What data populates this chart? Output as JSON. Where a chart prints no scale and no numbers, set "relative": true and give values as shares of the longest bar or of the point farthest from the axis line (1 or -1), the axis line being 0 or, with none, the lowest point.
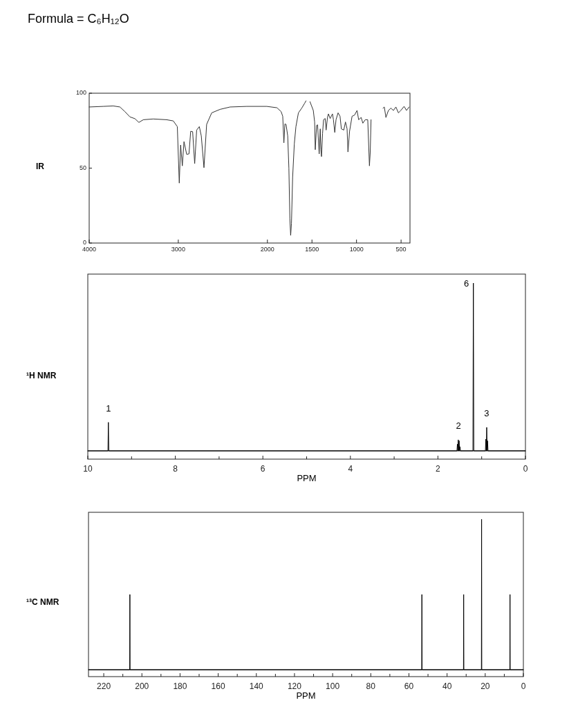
{
  "chart_data": [
    {
      "type": "line",
      "title": "IR",
      "annotations": [
        "Formula = C₆H₁₂O"
      ],
      "color": "#333333",
      "xlim": [
        4000,
        400
      ],
      "xticks": [
        4000,
        3000,
        2000,
        1500,
        1000,
        500
      ],
      "ylim": [
        0,
        100
      ],
      "yticks": [
        0,
        50,
        100
      ],
      "x": [
        4000,
        3843,
        3730,
        3655,
        3599,
        3543,
        3487,
        3442,
        3393,
        3281,
        3131,
        3056,
        3011,
        2989,
        2974,
        2955,
        2936,
        2906,
        2880,
        2861,
        2839,
        2816,
        2794,
        2764,
        2742,
        2712,
        2682,
        2625,
        2532,
        2419,
        2232,
        2007,
        1893,
        1846,
        1828,
        1815,
        1804,
        1791,
        1772,
        1759,
        1748,
        1739,
        1730,
        1717,
        1698,
        1680,
        1652,
        1615,
        1581,
        1567,
        1545,
        1522,
        1485,
        1470,
        1463,
        1448,
        1437,
        1419,
        1407,
        1400,
        1393,
        1381,
        1370,
        1352,
        1341,
        1326,
        1315,
        1296,
        1270,
        1259,
        1244,
        1230,
        1207,
        1185,
        1170,
        1143,
        1124,
        1106,
        1096,
        1078,
        1050,
        1022,
        994,
        976,
        948,
        929,
        902,
        874,
        855,
        846,
        837,
        770,
        703,
        688,
        670,
        642,
        614,
        586,
        558,
        530,
        503,
        466,
        439,
        410
      ],
      "values": [
        90.8,
        91.2,
        91.5,
        90.8,
        87.7,
        84.2,
        83,
        80.5,
        82.3,
        82.8,
        82.3,
        81.5,
        77.7,
        40,
        65.4,
        51.5,
        67.7,
        59.2,
        59.5,
        74.6,
        74.3,
        53,
        75.4,
        77.7,
        71.5,
        50.3,
        79.2,
        86.9,
        89.2,
        90.8,
        91.2,
        91.2,
        90.3,
        87.7,
        84.6,
        66.9,
        79.5,
        79.2,
        71.5,
        50,
        16.2,
        5.1,
        13.1,
        43.8,
        66.2,
        77.7,
        86.9,
        90,
        93.4,
        94.9,
        null,
        94.3,
        88.5,
        80.8,
        62.3,
        78.5,
        78.9,
        59.5,
        76.2,
        62.3,
        57.7,
        73.1,
        82.3,
        83.1,
        75.4,
        83.8,
        86.2,
        83.1,
        86.2,
        82.3,
        73.8,
        82.3,
        86.9,
        84.6,
        76.2,
        75.4,
        80.8,
        76.2,
        60.8,
        74.6,
        84.6,
        85.4,
        88.5,
        82.3,
        83.8,
        80,
        82.3,
        82.3,
        51.5,
        60.8,
        82.3,
        null,
        90,
        90.8,
        83.8,
        88.5,
        90,
        88.5,
        90.8,
        86.9,
        88.5,
        91.2,
        88.5,
        90.8
      ]
    },
    {
      "type": "line",
      "title": "¹H NMR",
      "xlabel": "PPM",
      "relative": true,
      "color": "#000000",
      "xlim": [
        10,
        0
      ],
      "xticks": [
        10,
        {
          "value": 9,
          "label": null
        },
        8,
        {
          "value": 7,
          "label": null
        },
        6,
        {
          "value": 5,
          "label": null
        },
        4,
        {
          "value": 3,
          "label": null
        },
        2,
        {
          "value": 1,
          "label": null
        },
        0
      ],
      "x": [
        10,
        9.54,
        9.53,
        9.52,
        1.565,
        1.555,
        1.545,
        1.535,
        1.525,
        1.515,
        1.505,
        1.495,
        1.485,
        1.2,
        1.19,
        1.18,
        0.915,
        0.905,
        0.895,
        0.885,
        0.875,
        0.865,
        0.855,
        0
      ],
      "values": [
        0,
        0,
        0.17,
        0,
        0,
        0.04,
        0,
        0.066,
        0,
        0.06,
        0,
        0.025,
        0,
        0,
        1,
        0,
        0,
        0.07,
        0,
        0.14,
        0,
        0.06,
        0,
        0
      ],
      "annotations": [
        {
          "text": "1",
          "x": 9.53,
          "y": 0.17
        },
        {
          "text": "2",
          "x": 1.53,
          "y": 0.066
        },
        {
          "text": "6",
          "x": 1.19,
          "y": 1
        },
        {
          "text": "3",
          "x": 0.885,
          "y": 0.14
        }
      ]
    },
    {
      "type": "line",
      "title": "¹³C NMR",
      "xlabel": "PPM",
      "relative": true,
      "color": "#000000",
      "xlim": [
        228,
        0
      ],
      "xticks": [
        220,
        {
          "value": 210,
          "label": null
        },
        200,
        {
          "value": 190,
          "label": null
        },
        180,
        {
          "value": 170,
          "label": null
        },
        160,
        {
          "value": 150,
          "label": null
        },
        140,
        {
          "value": 130,
          "label": null
        },
        120,
        {
          "value": 110,
          "label": null
        },
        100,
        {
          "value": 90,
          "label": null
        },
        80,
        {
          "value": 70,
          "label": null
        },
        60,
        {
          "value": 50,
          "label": null
        },
        40,
        {
          "value": 30,
          "label": null
        },
        20,
        {
          "value": 10,
          "label": null
        },
        0
      ],
      "x": [
        228,
        206.4,
        206.3,
        206.2,
        53.3,
        53.2,
        53.1,
        31.4,
        31.3,
        31.2,
        22,
        21.9,
        21.8,
        7.1,
        7,
        6.9,
        0
      ],
      "values": [
        0,
        0,
        0.5,
        0,
        0,
        0.5,
        0,
        0,
        0.5,
        0,
        0,
        1,
        0,
        0,
        0.5,
        0,
        0
      ]
    }
  ]
}
